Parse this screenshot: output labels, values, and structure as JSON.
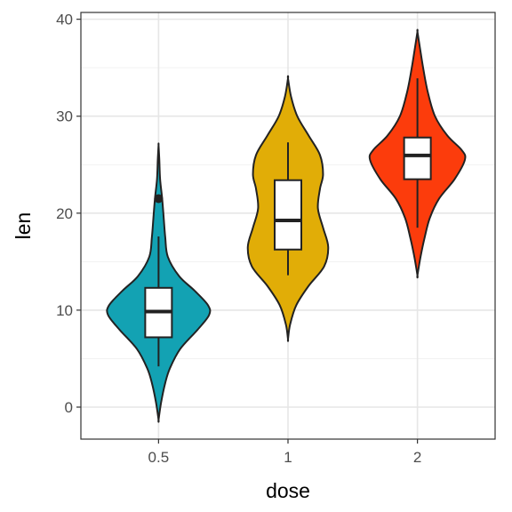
{
  "chart_data": {
    "type": "violin",
    "xlabel": "dose",
    "ylabel": "len",
    "categories": [
      "0.5",
      "1",
      "2"
    ],
    "ylim": [
      -3.3,
      40.7
    ],
    "yticks": [
      0,
      10,
      20,
      30,
      40
    ],
    "yticks_labels": [
      "0",
      "10",
      "20",
      "30",
      "40"
    ],
    "grid": true,
    "legend": "none",
    "colors": {
      "0.5": "#13a2b3",
      "1": "#e1ad07",
      "2": "#fc3c0c"
    },
    "series": [
      {
        "category": "0.5",
        "fill": "#13a2b3",
        "violin_range": [
          -1.3,
          27.0
        ],
        "violin_profile": [
          [
            -1.3,
            0.0
          ],
          [
            0.5,
            0.05
          ],
          [
            2.5,
            0.13
          ],
          [
            4.0,
            0.22
          ],
          [
            6.0,
            0.42
          ],
          [
            8.0,
            0.76
          ],
          [
            9.5,
            0.98
          ],
          [
            10.5,
            0.96
          ],
          [
            12.0,
            0.7
          ],
          [
            13.5,
            0.4
          ],
          [
            15.5,
            0.18
          ],
          [
            17.5,
            0.13
          ],
          [
            19.5,
            0.1
          ],
          [
            21.5,
            0.07
          ],
          [
            23.5,
            0.03
          ],
          [
            25.5,
            0.015
          ],
          [
            27.0,
            0.0
          ]
        ],
        "box": {
          "whisker_low": 4.2,
          "q1": 7.2,
          "median": 9.85,
          "q3": 12.3,
          "whisker_high": 17.6
        },
        "outliers": [
          21.5
        ]
      },
      {
        "category": "1",
        "fill": "#e1ad07",
        "violin_range": [
          7.0,
          33.9
        ],
        "violin_profile": [
          [
            7.0,
            0.0
          ],
          [
            8.5,
            0.04
          ],
          [
            10.5,
            0.16
          ],
          [
            12.5,
            0.4
          ],
          [
            14.5,
            0.7
          ],
          [
            16.5,
            0.78
          ],
          [
            18.5,
            0.68
          ],
          [
            20.5,
            0.58
          ],
          [
            22.5,
            0.62
          ],
          [
            24.0,
            0.68
          ],
          [
            26.0,
            0.62
          ],
          [
            28.0,
            0.4
          ],
          [
            30.0,
            0.18
          ],
          [
            32.0,
            0.06
          ],
          [
            33.9,
            0.0
          ]
        ],
        "box": {
          "whisker_low": 13.6,
          "q1": 16.25,
          "median": 19.25,
          "q3": 23.4,
          "whisker_high": 27.3
        },
        "outliers": []
      },
      {
        "category": "2",
        "fill": "#fc3c0c",
        "violin_range": [
          13.6,
          38.7
        ],
        "violin_profile": [
          [
            13.6,
            0.0
          ],
          [
            15.5,
            0.06
          ],
          [
            17.5,
            0.14
          ],
          [
            19.5,
            0.24
          ],
          [
            21.5,
            0.42
          ],
          [
            23.5,
            0.72
          ],
          [
            25.5,
            0.92
          ],
          [
            26.5,
            0.86
          ],
          [
            28.0,
            0.58
          ],
          [
            30.0,
            0.34
          ],
          [
            32.5,
            0.2
          ],
          [
            35.0,
            0.11
          ],
          [
            37.0,
            0.05
          ],
          [
            38.7,
            0.0
          ]
        ],
        "box": {
          "whisker_low": 18.5,
          "q1": 23.5,
          "median": 25.95,
          "q3": 27.8,
          "whisker_high": 33.9
        },
        "outliers": []
      }
    ]
  }
}
